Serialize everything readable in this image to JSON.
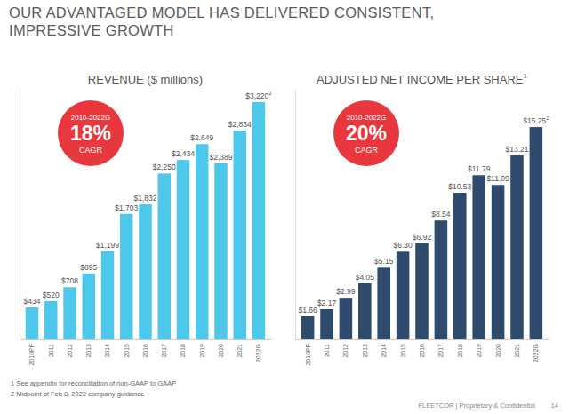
{
  "header": {
    "title": [
      "OUR ADVANTAGED MODEL HAS DELIVERED CONSISTENT,",
      "IMPRESSIVE GROWTH"
    ]
  },
  "chart_data": [
    {
      "type": "bar",
      "title": "REVENUE ($ millions)",
      "categories": [
        "2010PF",
        "2011",
        "2012",
        "2013",
        "2014",
        "2015",
        "2016",
        "2017",
        "2018",
        "2019",
        "2020",
        "2021",
        "2022G"
      ],
      "values": [
        434,
        520,
        708,
        895,
        1199,
        1703,
        1832,
        2250,
        2434,
        2649,
        2389,
        2834,
        3220
      ],
      "value_labels": [
        "$434",
        "$520",
        "$708",
        "$895",
        "$1,199",
        "$1,703",
        "$1,832",
        "$2,250",
        "$2,434",
        "$2,649",
        "$2,389",
        "$2,834",
        "$3,220"
      ],
      "notes": [
        {
          "category": "2022G",
          "text": "2"
        }
      ],
      "annotations": [
        "2010-2022G",
        "18%",
        "CAGR"
      ],
      "color": "#4ec8ea",
      "ylim": [
        0,
        3400
      ],
      "data_labels": true,
      "tick_labels": "x"
    },
    {
      "type": "bar",
      "title": "ADJUSTED NET INCOME PER SHARE",
      "title_note": "1",
      "categories": [
        "2010PF",
        "2011",
        "2012",
        "2013",
        "2014",
        "2015",
        "2016",
        "2017",
        "2018",
        "2019",
        "2020",
        "2021",
        "2022G"
      ],
      "values": [
        1.66,
        2.17,
        2.99,
        4.05,
        5.15,
        6.3,
        6.92,
        8.54,
        10.53,
        11.79,
        11.09,
        13.21,
        15.25
      ],
      "value_labels": [
        "$1.66",
        "$2.17",
        "$2.99",
        "$4.05",
        "$5.15",
        "$6.30",
        "$6.92",
        "$8.54",
        "$10.53",
        "$11.79",
        "$11.09",
        "$13.21",
        "$15.25"
      ],
      "notes": [
        {
          "category": "2022G",
          "text": "2"
        }
      ],
      "annotations": [
        "2010-2022G",
        "20%",
        "CAGR"
      ],
      "color": "#2e4a6c",
      "ylim": [
        0,
        18
      ],
      "data_labels": true,
      "tick_labels": "x"
    }
  ],
  "footnotes": [
    "1  See appendix for reconciliation of non-GAAP to GAAP",
    "2  Midpoint of Feb 8, 2022 company guidance"
  ],
  "footer": {
    "text": "FLEETCOR | Proprietary & Confidential",
    "page": "14"
  }
}
